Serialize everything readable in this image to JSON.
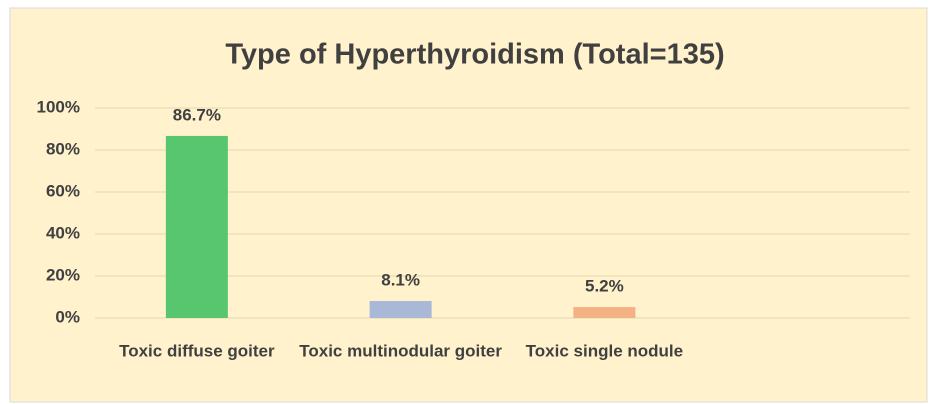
{
  "chart_data": {
    "type": "bar",
    "title": "Type of Hyperthyroidism (Total=135)",
    "categories": [
      "Toxic diffuse goiter",
      "Toxic multinodular goiter",
      "Toxic single nodule",
      null
    ],
    "values": [
      86.7,
      8.1,
      5.2,
      null
    ],
    "value_labels": [
      "86.7%",
      "8.1%",
      "5.2%",
      null
    ],
    "colors": [
      "#58c66e",
      "#a9b8d6",
      "#f4b183",
      null
    ],
    "ylim": [
      0,
      100
    ],
    "yticks": [
      {
        "value": 0,
        "label": "0%"
      },
      {
        "value": 20,
        "label": "20%"
      },
      {
        "value": 40,
        "label": "40%"
      },
      {
        "value": 60,
        "label": "60%"
      },
      {
        "value": 80,
        "label": "80%"
      },
      {
        "value": 100,
        "label": "100%"
      }
    ],
    "grid": true
  }
}
